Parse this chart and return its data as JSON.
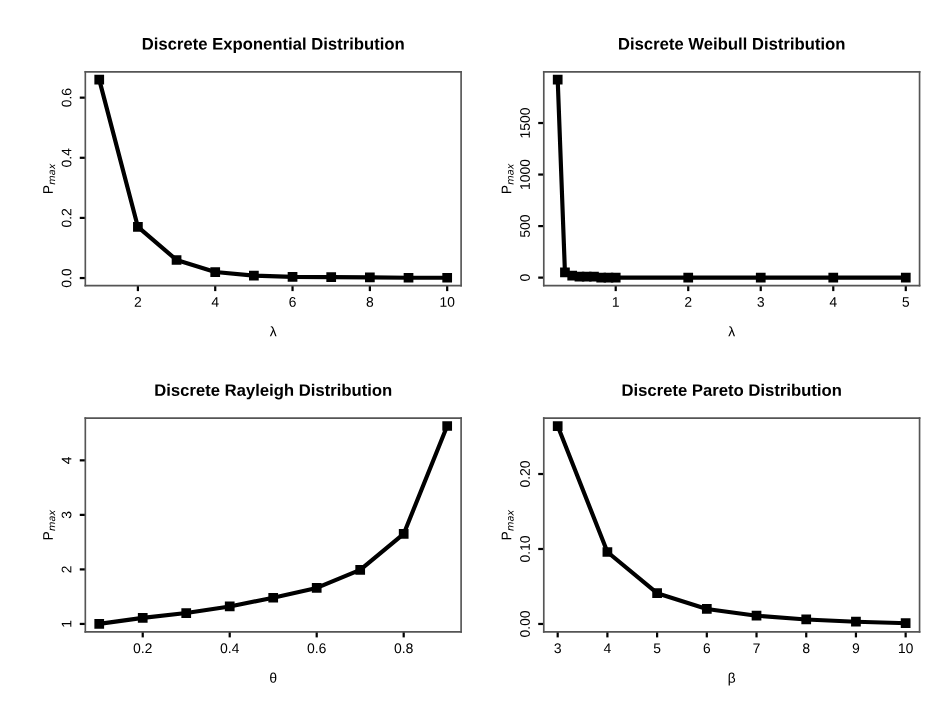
{
  "chart_data": [
    {
      "type": "line",
      "title": "Discrete Exponential Distribution",
      "xlabel": "λ",
      "ylabel": "P$_{max}$",
      "marker": "square",
      "grid": false,
      "legend": false,
      "x": [
        1,
        2,
        3,
        4,
        5,
        6,
        7,
        8,
        9,
        10
      ],
      "series": [
        {
          "color": "#000000",
          "values": [
            0.66,
            0.17,
            0.06,
            0.02,
            0.008,
            0.004,
            0.003,
            0.002,
            0.001,
            0.001
          ]
        }
      ],
      "xlim": [
        0.64,
        10.36
      ],
      "ylim": [
        -0.025,
        0.686
      ],
      "xticks": [
        2,
        4,
        6,
        8,
        10
      ],
      "yticks": [
        {
          "value": 0,
          "label": "0.0"
        },
        0.2,
        0.4,
        0.6
      ]
    },
    {
      "type": "line",
      "title": "Discrete Weibull Distribution",
      "xlabel": "λ",
      "ylabel": "P$_{max}$",
      "marker": "square",
      "grid": false,
      "legend": false,
      "x": [
        0.2,
        0.3,
        0.4,
        0.5,
        0.6,
        0.7,
        0.8,
        0.9,
        1,
        2,
        3,
        4,
        5
      ],
      "series": [
        {
          "color": "#000000",
          "values": [
            1920,
            50,
            20,
            10,
            10,
            10,
            0,
            0,
            0,
            0,
            0,
            0,
            0
          ]
        }
      ],
      "xlim": [
        0.008,
        5.19
      ],
      "ylim": [
        -77,
        1997
      ],
      "xticks": [
        1,
        2,
        3,
        4,
        5
      ],
      "yticks": [
        0,
        500,
        1000,
        1500
      ]
    },
    {
      "type": "line",
      "title": "Discrete Rayleigh Distribution",
      "xlabel": "θ",
      "ylabel": "P$_{max}$",
      "marker": "square",
      "grid": false,
      "legend": false,
      "x": [
        0.1,
        0.2,
        0.3,
        0.4,
        0.5,
        0.6,
        0.7,
        0.8,
        0.9
      ],
      "series": [
        {
          "color": "#000000",
          "values": [
            1.0,
            1.11,
            1.2,
            1.32,
            1.48,
            1.66,
            1.99,
            2.65,
            4.63
          ]
        }
      ],
      "xlim": [
        0.068,
        0.932
      ],
      "ylim": [
        0.855,
        4.775
      ],
      "xticks": [
        0.2,
        0.4,
        0.6,
        0.8
      ],
      "yticks": [
        1,
        2,
        3,
        4
      ]
    },
    {
      "type": "line",
      "title": "Discrete Pareto Distribution",
      "xlabel": "β",
      "ylabel": "P$_{max}$",
      "marker": "square",
      "grid": false,
      "legend": false,
      "x": [
        3,
        4,
        5,
        6,
        7,
        8,
        9,
        10
      ],
      "series": [
        {
          "color": "#000000",
          "values": [
            0.264,
            0.096,
            0.041,
            0.02,
            0.011,
            0.006,
            0.003,
            0.001
          ]
        }
      ],
      "xlim": [
        2.72,
        10.28
      ],
      "ylim": [
        -0.0105,
        0.2746
      ],
      "xticks": [
        3,
        4,
        5,
        6,
        7,
        8,
        9,
        10
      ],
      "yticks": [
        {
          "value": 0,
          "label": "0.00"
        },
        {
          "value": 0.1,
          "label": "0.10"
        },
        {
          "value": 0.2,
          "label": "0.20"
        }
      ]
    }
  ]
}
